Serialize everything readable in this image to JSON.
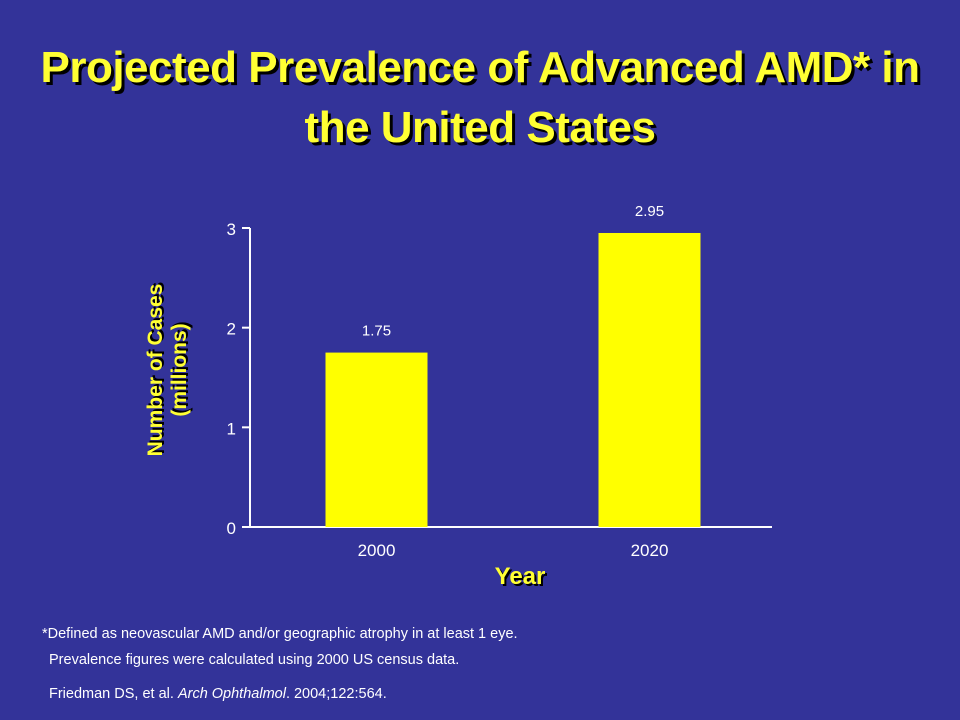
{
  "title": {
    "line1": "Projected Prevalence of Advanced AMD* in",
    "line2": "the United States"
  },
  "chart_data": {
    "type": "bar",
    "categories": [
      "2000",
      "2020"
    ],
    "values": [
      1.75,
      2.95
    ],
    "data_labels": [
      "1.75",
      "2.95"
    ],
    "xlabel": "Year",
    "ylabel_line1": "Number of Cases",
    "ylabel_line2": "(millions)",
    "ylim": [
      0,
      3
    ],
    "yticks": [
      "0",
      "1",
      "2",
      "3"
    ],
    "grid": false,
    "legend": "none",
    "bar_color": "#ffff00",
    "axis_color": "#ffffff"
  },
  "footnote": {
    "line1": "*Defined as neovascular AMD and/or geographic atrophy in at least 1 eye.",
    "line2": "Prevalence figures were calculated using 2000 US census data.",
    "citation_prefix": "Friedman DS, et al. ",
    "citation_journal": "Arch Ophthalmol",
    "citation_suffix": ". 2004;122:564."
  },
  "colors": {
    "background": "#333399",
    "title": "#ffff33",
    "text": "#ffffff"
  }
}
